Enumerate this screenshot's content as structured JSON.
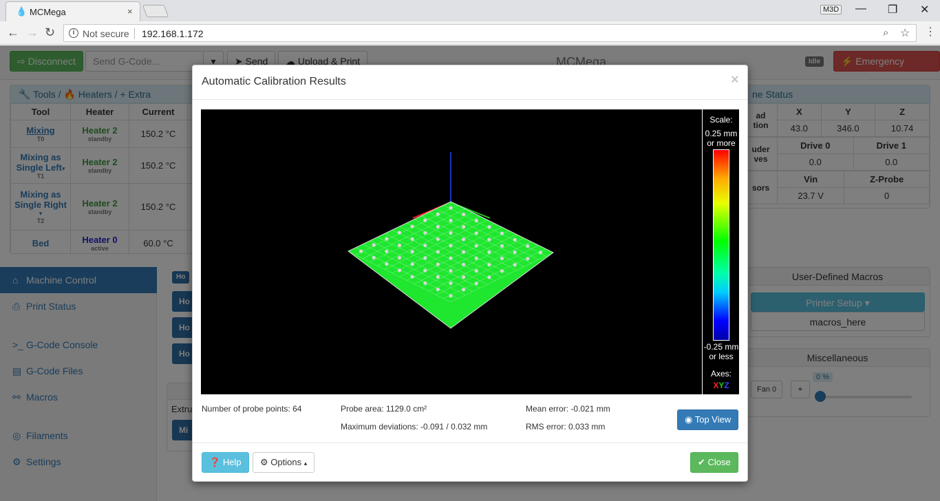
{
  "browser": {
    "tab_title": "MCMega",
    "tab_close": "×",
    "user_badge": "M3D",
    "minimize": "—",
    "maximize": "❐",
    "close": "✕",
    "security_label": "Not secure",
    "url": "192.168.1.172"
  },
  "toolbar": {
    "disconnect_label": "Disconnect",
    "gcode_placeholder": "Send G-Code...",
    "send_label": "Send",
    "upload_label": "Upload & Print",
    "app_title": "MCMega",
    "status_label": "Idle",
    "emergency_label": "Emergency STOP"
  },
  "tools_panel": {
    "breadcrumb_tools": "Tools",
    "breadcrumb_heaters": "Heaters",
    "breadcrumb_extra": "Extra",
    "col_tool": "Tool",
    "col_heater": "Heater",
    "col_current": "Current",
    "rows": [
      {
        "tool": "Mixing",
        "tool_id": "T0",
        "heater": "Heater 2",
        "state": "standby",
        "current": "150.2 °C"
      },
      {
        "tool": "Mixing as Single Left",
        "tool_id": "T1",
        "heater": "Heater 2",
        "state": "standby",
        "current": "150.2 °C"
      },
      {
        "tool": "Mixing as Single Right",
        "tool_id": "T2",
        "heater": "Heater 2",
        "state": "standby",
        "current": "150.2 °C"
      },
      {
        "tool": "Bed",
        "tool_id": "",
        "heater": "Heater 0",
        "state": "active",
        "current": "60.0 °C"
      }
    ]
  },
  "machine_status": {
    "title": "ne Status",
    "head_position_label": "ad\ntion",
    "x_label": "X",
    "y_label": "Y",
    "z_label": "Z",
    "x": "43.0",
    "y": "346.0",
    "z": "10.74",
    "extruder_label": "uder\nves",
    "drive0_label": "Drive 0",
    "drive1_label": "Drive 1",
    "drive0": "0.0",
    "drive1": "0.0",
    "sensors_label": "sors",
    "vin_label": "Vin",
    "zprobe_label": "Z-Probe",
    "vin": "23.7 V",
    "zprobe": "0"
  },
  "sidebar": {
    "items": [
      {
        "label": "Machine Control",
        "icon": "home-icon"
      },
      {
        "label": "Print Status",
        "icon": "print-icon"
      },
      {
        "label": "G-Code Console",
        "icon": "console-icon"
      },
      {
        "label": "G-Code Files",
        "icon": "files-icon"
      },
      {
        "label": "Macros",
        "icon": "link-icon"
      },
      {
        "label": "Filaments",
        "icon": "filament-icon"
      },
      {
        "label": "Settings",
        "icon": "gear-icon"
      }
    ]
  },
  "center_stubs": {
    "home_small": "Ho",
    "home1": "Ho",
    "home2": "Ho",
    "home3": "Ho",
    "extrude_label": "Extru",
    "mix_label": "Mi"
  },
  "macros_panel": {
    "title": "User-Defined Macros",
    "printer_setup": "Printer Setup",
    "macros_here": "macros_here"
  },
  "misc_panel": {
    "title": "Miscellaneous",
    "fan_label": "Fan 0",
    "fan_value": "0 %",
    "fan_fill": 0
  },
  "modal": {
    "title": "Automatic Calibration Results",
    "close_glyph": "×",
    "scale_title": "Scale:",
    "scale_max_line1": "0.25 mm",
    "scale_max_line2": "or more",
    "scale_min_line1": "-0.25 mm",
    "scale_min_line2": "or less",
    "axes_label": "Axes:",
    "axis_x": "X",
    "axis_y": "Y",
    "axis_z": "Z",
    "probe_points": "Number of probe points: 64",
    "probe_area": "Probe area: 1129.0 cm²",
    "max_deviation": "Maximum deviations: -0.091 / 0.032 mm",
    "mean_error": "Mean error: -0.021 mm",
    "rms_error": "RMS error: 0.033 mm",
    "top_view_label": "Top View",
    "help_label": "Help",
    "options_label": "Options",
    "close_label": "Close"
  },
  "colors": {
    "primary": "#337ab7",
    "success": "#5cb85c",
    "danger": "#d9534f",
    "info": "#5bc0de",
    "mesh": "#22ff33"
  }
}
